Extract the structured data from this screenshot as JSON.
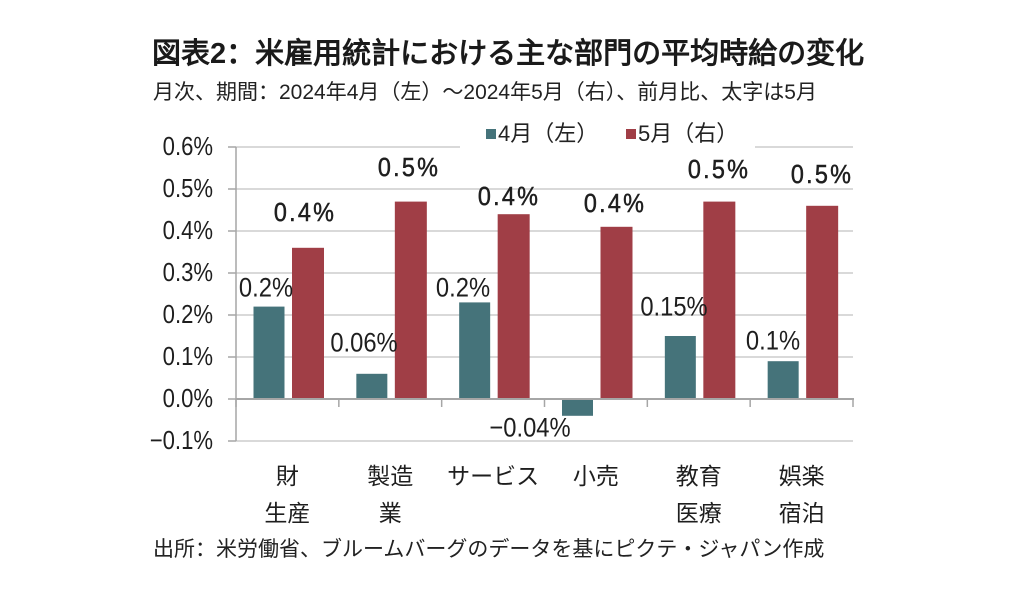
{
  "source": "出所：米労働省、ブルームバーグのデータを基にピクテ・ジャパン作成",
  "chart_data": {
    "type": "bar",
    "title": "図表2：米雇用統計における主な部門の平均時給の変化",
    "subtitle": "月次、期間：2024年4月（左）～2024年5月（右）、前月比、太字は5月",
    "xlabel": "",
    "ylabel": "",
    "ylim": [
      -0.1,
      0.6
    ],
    "grid": true,
    "legend": "top-center",
    "ytick_values": [
      0.6,
      0.5,
      0.4,
      0.3,
      0.2,
      0.1,
      0.0,
      -0.1
    ],
    "ytick_labels": [
      "0.6%",
      "0.5%",
      "0.4%",
      "0.3%",
      "0.2%",
      "0.1%",
      "0.0%",
      "−0.1%"
    ],
    "categories": [
      [
        "財",
        "生産"
      ],
      [
        "製造",
        "業"
      ],
      [
        "サービス"
      ],
      [
        "小売"
      ],
      [
        "教育",
        "医療"
      ],
      [
        "娯楽",
        "宿泊"
      ]
    ],
    "series": [
      {
        "name": "4月（左）",
        "color": "#45737A",
        "values": [
          0.22,
          0.06,
          0.23,
          -0.04,
          0.15,
          0.09
        ],
        "labels": [
          "0.2%",
          "0.06%",
          "0.2%",
          "−0.04%",
          "0.15%",
          "0.1%"
        ]
      },
      {
        "name": "5月（右）",
        "color": "#A03E46",
        "values": [
          0.36,
          0.47,
          0.44,
          0.41,
          0.47,
          0.46
        ],
        "labels": [
          "0.4%",
          "0.5%",
          "0.4%",
          "0.4%",
          "0.5%",
          "0.5%"
        ]
      }
    ]
  }
}
